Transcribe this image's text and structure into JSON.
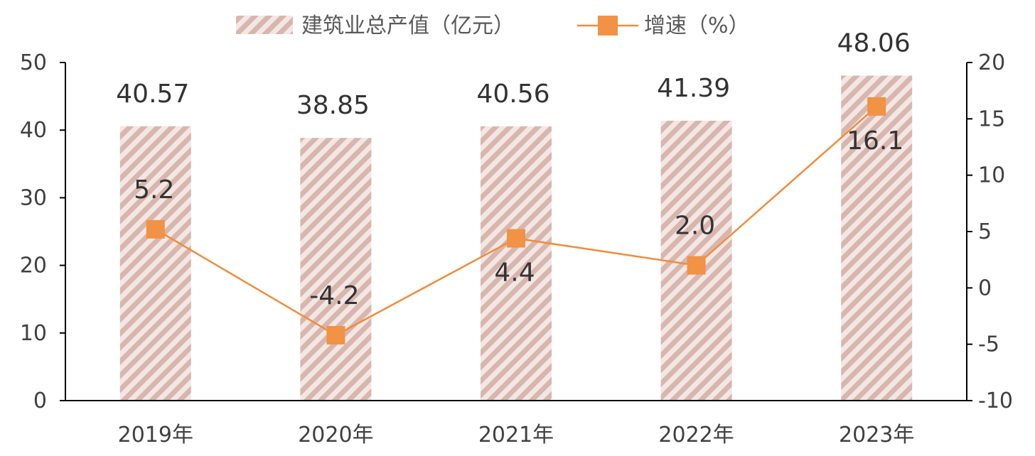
{
  "chart_data": {
    "type": "bar",
    "categories": [
      "2019年",
      "2020年",
      "2021年",
      "2022年",
      "2023年"
    ],
    "series": [
      {
        "name": "建筑业总产值（亿元）",
        "type": "bar",
        "axis": "left",
        "values": [
          40.57,
          38.85,
          40.56,
          41.39,
          48.06
        ],
        "labels": [
          "40.57",
          "38.85",
          "40.56",
          "41.39",
          "48.06"
        ]
      },
      {
        "name": "增速（%）",
        "type": "line",
        "axis": "right",
        "values": [
          5.2,
          -4.2,
          4.4,
          2.0,
          16.1
        ],
        "labels": [
          "5.2",
          "-4.2",
          "4.4",
          "2.0",
          "16.1"
        ]
      }
    ],
    "y_left": {
      "min": 0,
      "max": 50,
      "ticks": [
        0,
        10,
        20,
        30,
        40,
        50
      ]
    },
    "y_right": {
      "min": -10,
      "max": 20,
      "ticks": [
        -10,
        -5,
        0,
        5,
        10,
        15,
        20
      ]
    },
    "legend_position": "top-center",
    "grid": false,
    "colors": {
      "bar": "#dcbcb5",
      "line": "#f08c3c",
      "marker": "#f29245",
      "axis": "#000000",
      "text": "#404040"
    }
  }
}
